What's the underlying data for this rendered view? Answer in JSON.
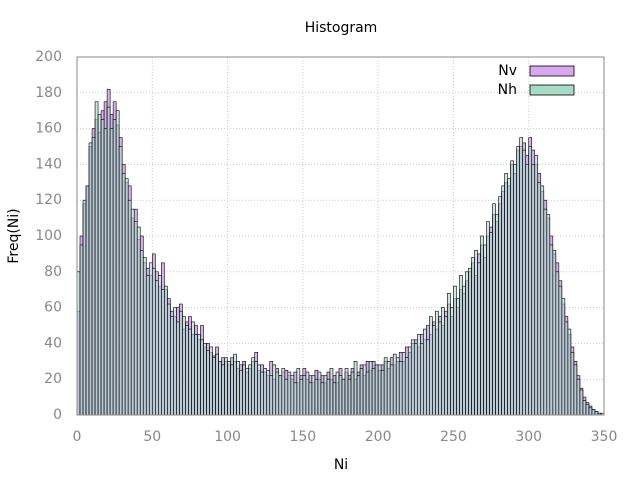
{
  "chart_data": {
    "type": "histogram",
    "title": "Histogram",
    "x_label": "Ni",
    "y_label": "Freq(Ni)",
    "bins": [
      0,
      2,
      4,
      6,
      8,
      10,
      12,
      14,
      16,
      18,
      20,
      22,
      24,
      26,
      28,
      30,
      32,
      34,
      36,
      38,
      40,
      42,
      44,
      46,
      48,
      50,
      52,
      54,
      56,
      58,
      60,
      62,
      64,
      66,
      68,
      70,
      72,
      74,
      76,
      78,
      80,
      82,
      84,
      86,
      88,
      90,
      92,
      94,
      96,
      98,
      100,
      102,
      104,
      106,
      108,
      110,
      112,
      114,
      116,
      118,
      120,
      122,
      124,
      126,
      128,
      130,
      132,
      134,
      136,
      138,
      140,
      142,
      144,
      146,
      148,
      150,
      152,
      154,
      156,
      158,
      160,
      162,
      164,
      166,
      168,
      170,
      172,
      174,
      176,
      178,
      180,
      182,
      184,
      186,
      188,
      190,
      192,
      194,
      196,
      198,
      200,
      202,
      204,
      206,
      208,
      210,
      212,
      214,
      216,
      218,
      220,
      222,
      224,
      226,
      228,
      230,
      232,
      234,
      236,
      238,
      240,
      242,
      244,
      246,
      248,
      250,
      252,
      254,
      256,
      258,
      260,
      262,
      264,
      266,
      268,
      270,
      272,
      274,
      276,
      278,
      280,
      282,
      284,
      286,
      288,
      290,
      292,
      294,
      296,
      298,
      300,
      302,
      304,
      306,
      308,
      310,
      312,
      314,
      316,
      318,
      320,
      322,
      324,
      326,
      328,
      330,
      332,
      334,
      336,
      338,
      340,
      342,
      344,
      346,
      348,
      350
    ],
    "series": [
      {
        "name": "Nv",
        "color": "#d9a6f0",
        "values": [
          58,
          100,
          118,
          128,
          150,
          160,
          165,
          158,
          170,
          175,
          182,
          168,
          175,
          162,
          155,
          140,
          130,
          128,
          110,
          115,
          98,
          100,
          85,
          82,
          78,
          90,
          80,
          72,
          85,
          70,
          65,
          58,
          55,
          60,
          62,
          48,
          52,
          55,
          45,
          50,
          42,
          50,
          38,
          40,
          35,
          33,
          38,
          30,
          32,
          30,
          28,
          32,
          30,
          26,
          28,
          30,
          24,
          26,
          30,
          35,
          25,
          28,
          24,
          22,
          30,
          20,
          26,
          22,
          24,
          25,
          22,
          20,
          24,
          18,
          22,
          26,
          20,
          22,
          18,
          25,
          20,
          22,
          18,
          24,
          20,
          22,
          18,
          26,
          20,
          24,
          22,
          26,
          20,
          24,
          28,
          22,
          30,
          25,
          30,
          28,
          25,
          28,
          30,
          26,
          32,
          28,
          30,
          35,
          30,
          38,
          35,
          40,
          42,
          38,
          45,
          42,
          50,
          45,
          52,
          48,
          55,
          50,
          58,
          62,
          55,
          65,
          60,
          70,
          68,
          75,
          80,
          85,
          78,
          90,
          95,
          88,
          100,
          105,
          112,
          108,
          118,
          125,
          130,
          128,
          140,
          135,
          148,
          150,
          152,
          145,
          155,
          148,
          140,
          135,
          125,
          120,
          110,
          100,
          90,
          85,
          75,
          62,
          55,
          45,
          38,
          30,
          22,
          15,
          10,
          7,
          5,
          3,
          2,
          1,
          0
        ]
      },
      {
        "name": "Nh",
        "color": "#a6dcc6",
        "values": [
          80,
          95,
          120,
          128,
          152,
          155,
          175,
          168,
          165,
          160,
          172,
          160,
          165,
          170,
          150,
          135,
          132,
          120,
          115,
          108,
          105,
          92,
          88,
          78,
          85,
          82,
          75,
          78,
          70,
          72,
          62,
          55,
          60,
          52,
          58,
          55,
          50,
          48,
          52,
          45,
          45,
          42,
          40,
          36,
          38,
          32,
          34,
          30,
          28,
          32,
          30,
          28,
          34,
          30,
          25,
          28,
          26,
          28,
          32,
          30,
          28,
          24,
          26,
          25,
          22,
          28,
          24,
          22,
          26,
          20,
          24,
          22,
          18,
          26,
          20,
          22,
          24,
          18,
          22,
          20,
          24,
          18,
          22,
          20,
          26,
          18,
          24,
          22,
          20,
          26,
          20,
          24,
          30,
          22,
          26,
          28,
          24,
          30,
          26,
          28,
          28,
          25,
          32,
          30,
          28,
          34,
          32,
          30,
          35,
          32,
          38,
          42,
          40,
          45,
          40,
          48,
          42,
          55,
          50,
          58,
          52,
          60,
          55,
          68,
          60,
          72,
          65,
          78,
          72,
          80,
          82,
          88,
          92,
          85,
          100,
          95,
          108,
          102,
          118,
          112,
          122,
          128,
          135,
          132,
          142,
          140,
          150,
          155,
          148,
          140,
          150,
          140,
          145,
          130,
          128,
          115,
          112,
          95,
          92,
          80,
          72,
          65,
          52,
          48,
          35,
          28,
          20,
          14,
          8,
          6,
          4,
          3,
          2,
          1,
          1
        ]
      }
    ],
    "xlim": [
      0,
      350
    ],
    "xticks": [
      0,
      50,
      100,
      150,
      200,
      250,
      300,
      350
    ],
    "ylim": [
      0,
      200
    ],
    "yticks": [
      0,
      20,
      40,
      60,
      80,
      100,
      120,
      140,
      160,
      180,
      200
    ],
    "grid": true,
    "legend": "top-right"
  }
}
